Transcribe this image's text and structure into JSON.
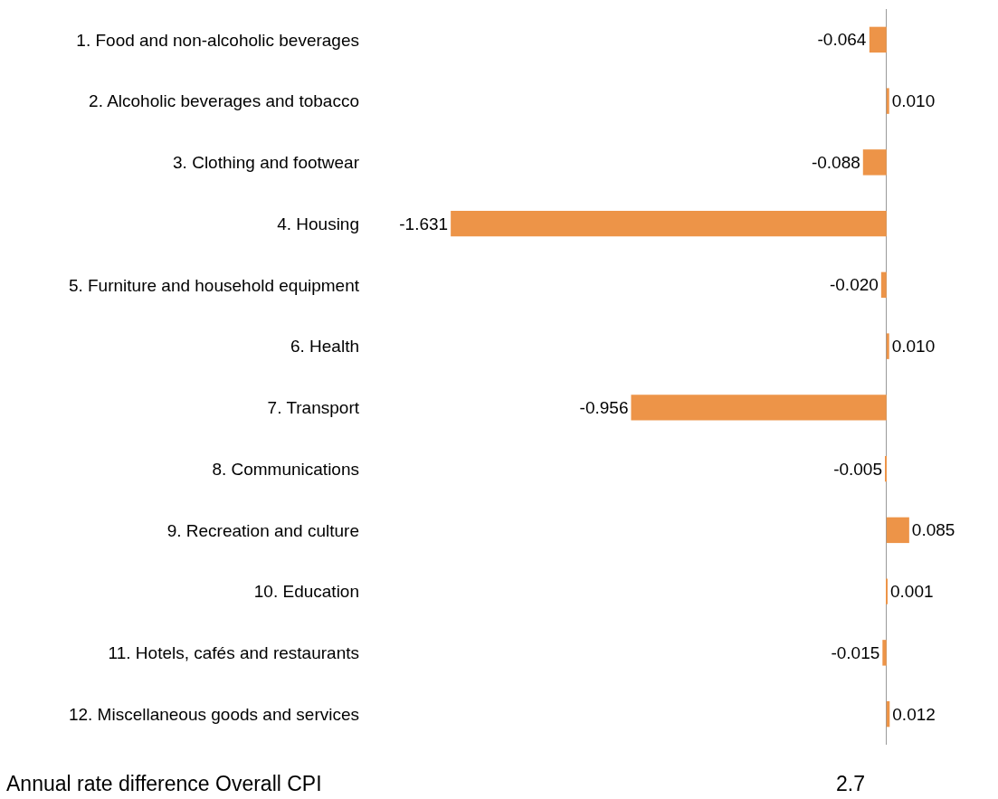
{
  "chart_data": {
    "type": "bar",
    "orientation": "horizontal",
    "categories": [
      "1. Food and non-alcoholic beverages",
      "2. Alcoholic beverages and tobacco",
      "3. Clothing and footwear",
      "4. Housing",
      "5. Furniture and household equipment",
      "6. Health",
      "7. Transport",
      "8. Communications",
      "9. Recreation and culture",
      "10. Education",
      "11. Hotels, cafés and restaurants",
      "12. Miscellaneous goods and services"
    ],
    "values": [
      -0.064,
      0.01,
      -0.088,
      -1.631,
      -0.02,
      0.01,
      -0.956,
      -0.005,
      0.085,
      0.001,
      -0.015,
      0.012
    ],
    "value_labels": [
      "-0.064",
      "0.010",
      "-0.088",
      "-1.631",
      "-0.020",
      "0.010",
      "-0.956",
      "-0.005",
      "0.085",
      "0.001",
      "-0.015",
      "0.012"
    ],
    "color": "#ed9448",
    "legend": false,
    "annotations": [
      "Annual rate difference Overall CPI",
      "2.7"
    ]
  }
}
